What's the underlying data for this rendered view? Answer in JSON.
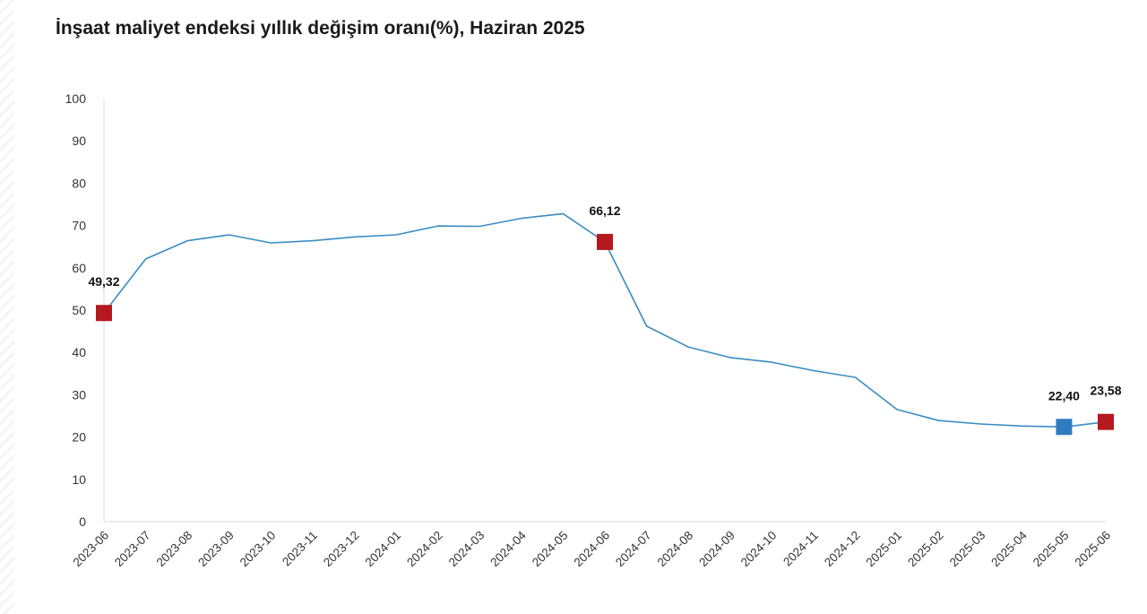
{
  "chart_data": {
    "type": "line",
    "title": "İnşaat maliyet endeksi yıllık değişim oranı(%), Haziran 2025",
    "xlabel": "",
    "ylabel": "",
    "ylim": [
      0,
      100
    ],
    "yticks": [
      "0",
      "10",
      "20",
      "30",
      "40",
      "50",
      "60",
      "70",
      "80",
      "90",
      "100"
    ],
    "grid": false,
    "categories": [
      "2023-06",
      "2023-07",
      "2023-08",
      "2023-09",
      "2023-10",
      "2023-11",
      "2023-12",
      "2024-01",
      "2024-02",
      "2024-03",
      "2024-04",
      "2024-05",
      "2024-06",
      "2024-07",
      "2024-08",
      "2024-09",
      "2024-10",
      "2024-11",
      "2024-12",
      "2025-01",
      "2025-02",
      "2025-03",
      "2025-04",
      "2025-05",
      "2025-06"
    ],
    "series": [
      {
        "color": "#3a8cc4",
        "values": [
          49.32,
          62.1,
          66.4,
          67.8,
          65.9,
          66.4,
          67.3,
          67.8,
          69.9,
          69.8,
          71.7,
          72.8,
          66.12,
          46.2,
          41.3,
          38.8,
          37.7,
          35.7,
          34.1,
          26.5,
          23.9,
          23.1,
          22.6,
          22.4,
          23.58
        ]
      }
    ],
    "markers": [
      {
        "index": 0,
        "label": "49,32",
        "color": "#b5191f"
      },
      {
        "index": 12,
        "label": "66,12",
        "color": "#b5191f"
      },
      {
        "index": 23,
        "label": "22,40",
        "color": "#2f7bbf"
      },
      {
        "index": 24,
        "label": "23,58",
        "color": "#b5191f"
      }
    ]
  }
}
